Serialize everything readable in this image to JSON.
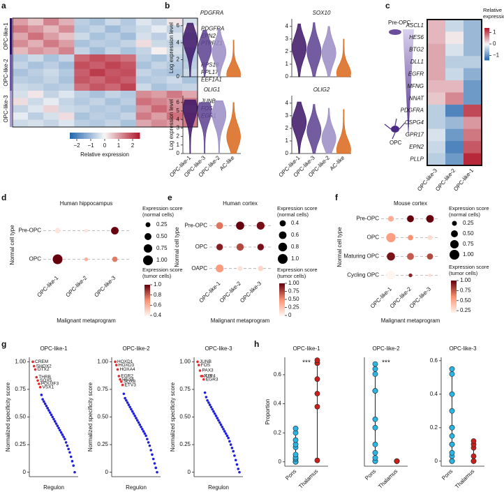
{
  "chart_data": [
    {
      "type": "heatmap",
      "panel_label": "a",
      "row_groups": [
        "OPC-like-1",
        "OPC-like-2",
        "OPC-like-3"
      ],
      "row_group_colors": [
        "#2d1160",
        "#6a55a0",
        "#a99bd0"
      ],
      "row_labels": [
        null,
        "PDGFRA",
        "EPN2",
        "PTPRZ1",
        null,
        null,
        "RPS18",
        "RPL17",
        "EEF1A1",
        null,
        null,
        "JUNB",
        "FOS",
        "EGR1",
        null
      ],
      "values": [
        [
          1.0,
          0.6,
          1.3,
          0.8,
          -0.7,
          -0.9,
          -0.5,
          -0.8,
          -0.3,
          -0.6,
          0.2,
          -0.4
        ],
        [
          1.4,
          1.1,
          0.7,
          1.2,
          -0.8,
          -0.6,
          -1.0,
          -0.7,
          -0.5,
          -0.2,
          -0.6,
          0.1
        ],
        [
          0.9,
          1.5,
          1.0,
          0.6,
          -0.5,
          -0.9,
          -0.7,
          -1.0,
          -0.4,
          -0.7,
          -0.3,
          -0.5
        ],
        [
          1.2,
          0.8,
          1.4,
          1.0,
          -0.9,
          -0.7,
          -0.8,
          -0.6,
          0.3,
          -0.5,
          -0.6,
          -0.2
        ],
        [
          0.7,
          1.1,
          0.9,
          1.3,
          -0.6,
          -1.0,
          -0.6,
          -0.9,
          -0.6,
          0.1,
          -0.4,
          -0.7
        ],
        [
          -0.8,
          -0.5,
          -0.9,
          -0.6,
          1.6,
          1.9,
          1.7,
          1.5,
          -0.7,
          -0.9,
          -0.6,
          -0.8
        ],
        [
          -0.6,
          -0.9,
          -0.7,
          -1.0,
          1.9,
          1.7,
          2.0,
          1.8,
          -0.9,
          -0.6,
          -0.8,
          -0.7
        ],
        [
          -0.9,
          -0.7,
          -0.5,
          -0.8,
          1.7,
          2.1,
          1.8,
          1.9,
          -0.6,
          -0.8,
          -0.9,
          -0.5
        ],
        [
          -0.7,
          -0.8,
          -0.6,
          -0.9,
          1.8,
          1.6,
          1.9,
          1.7,
          -0.8,
          -0.7,
          -0.5,
          -0.9
        ],
        [
          -0.5,
          -0.6,
          -0.8,
          -0.7,
          1.5,
          1.8,
          1.6,
          2.0,
          -0.5,
          -0.9,
          -0.7,
          -0.6
        ],
        [
          -0.4,
          0.2,
          -0.6,
          -0.3,
          -0.7,
          -0.9,
          -0.6,
          -0.8,
          1.2,
          1.0,
          1.4,
          0.9
        ],
        [
          0.3,
          -0.5,
          -0.2,
          -0.6,
          -0.8,
          -0.6,
          -0.9,
          -0.7,
          1.5,
          1.3,
          1.1,
          1.4
        ],
        [
          -0.6,
          -0.3,
          0.4,
          -0.5,
          -0.6,
          -0.8,
          -0.7,
          -0.9,
          1.1,
          1.6,
          1.2,
          1.0
        ],
        [
          -0.2,
          -0.7,
          -0.4,
          0.3,
          -0.9,
          -0.7,
          -0.8,
          -0.6,
          1.4,
          1.0,
          1.5,
          1.3
        ],
        [
          -0.5,
          -0.4,
          -0.6,
          -0.3,
          -0.7,
          -0.8,
          -0.6,
          -0.9,
          0.9,
          1.2,
          1.0,
          1.4
        ]
      ],
      "colormap": [
        "#2166ac",
        "#f7f7f7",
        "#b2182b"
      ],
      "clim": [
        -2.5,
        2.5
      ],
      "colorbar_label": "Relative expression",
      "colorbar_ticks": [
        {
          "value": -2,
          "label": "−2"
        },
        {
          "value": -1,
          "label": "−1"
        },
        0,
        1,
        2
      ]
    },
    {
      "type": "violin",
      "panel_label": "b",
      "ylabel": "Log expression level",
      "categories": [
        "OPC-like-1",
        "OPC-like-3",
        "OPC-like-2",
        "AC-like"
      ],
      "colors": [
        "#3b1466",
        "#5b3f8f",
        "#9a8cc4",
        "#d9661a"
      ],
      "plots": [
        {
          "title": "PDGFRA",
          "ylim": [
            0,
            6.8
          ],
          "yticks": [
            0,
            2,
            4,
            6
          ],
          "values": [
            4.3,
            3.3,
            2.9,
            0.3
          ],
          "maxima": [
            6.3,
            5.5,
            5.6,
            4.3
          ]
        },
        {
          "title": "SOX10",
          "ylim": [
            0,
            4.6
          ],
          "yticks": [
            0,
            1,
            2,
            3,
            4
          ],
          "values": [
            2.3,
            2.0,
            1.9,
            0.3
          ],
          "maxima": [
            4.2,
            4.3,
            4.0,
            3.0
          ]
        },
        {
          "title": "OLIG1",
          "ylim": [
            0,
            6.8
          ],
          "yticks": [
            0,
            1,
            2,
            3,
            4,
            5,
            6
          ],
          "values": [
            5.3,
            5.0,
            4.6,
            2.0
          ],
          "maxima": [
            6.3,
            6.0,
            6.2,
            6.0
          ]
        },
        {
          "title": "OLIG2",
          "ylim": [
            0,
            4.6
          ],
          "yticks": [
            0,
            1,
            2,
            3,
            4
          ],
          "values": [
            2.5,
            1.8,
            1.2,
            0.3
          ],
          "maxima": [
            4.1,
            3.9,
            3.6,
            3.5
          ]
        }
      ]
    },
    {
      "type": "heatmap",
      "panel_label": "c",
      "categories": [
        "OPC-like-3",
        "OPC-like-2",
        "OPC-like-1"
      ],
      "row_labels": [
        "ASCL1",
        "HES6",
        "BTG2",
        "DLL1",
        "EGFR",
        "MFNG",
        "NNAT",
        "PDGFRA",
        "CSPG4",
        "GPR17",
        "EPN2",
        "PLLP"
      ],
      "values": [
        [
          0.4,
          -0.3,
          -0.6
        ],
        [
          0.4,
          0.1,
          -0.6
        ],
        [
          0.5,
          -0.2,
          -0.6
        ],
        [
          0.5,
          -0.4,
          -0.4
        ],
        [
          0.5,
          -0.3,
          -0.7
        ],
        [
          0.4,
          0.4,
          -0.9
        ],
        [
          0.3,
          0.7,
          -0.9
        ],
        [
          -0.4,
          -1.1,
          1.1
        ],
        [
          -0.4,
          -0.6,
          0.6
        ],
        [
          -0.2,
          -0.9,
          0.8
        ],
        [
          -0.3,
          -1.1,
          1.0
        ],
        [
          -0.4,
          -0.9,
          1.3
        ]
      ],
      "colormap": [
        "#2166ac",
        "#f7f7f7",
        "#b2182b"
      ],
      "clim": [
        -1.4,
        1.4
      ],
      "colorbar_label": "Relative expression",
      "colorbar_ticks": [
        1,
        0,
        {
          "value": -1,
          "label": "−1"
        }
      ],
      "annotations": [
        "Pre-OPC",
        "OPC"
      ]
    },
    {
      "type": "dot",
      "panel_label": "d",
      "title": "Human hippocampus",
      "ylabel": "Normal cell type",
      "xlabel": "Malignant metaprogram",
      "categories": [
        "OPC-like-1",
        "OPC-like-2",
        "OPC-like-3"
      ],
      "y_categories": [
        "Pre-OPC",
        "OPC"
      ],
      "size_values": [
        [
          0.3,
          0.15,
          0.6
        ],
        [
          1.0,
          0.15,
          0.3
        ]
      ],
      "color_values": [
        [
          0.45,
          0.45,
          1.0
        ],
        [
          1.0,
          0.6,
          0.75
        ]
      ],
      "size_lim": [
        0,
        1
      ],
      "size_legend_title": "Expression score (normal cells)",
      "size_ticks": [
        0.25,
        {
          "value": 0.5,
          "label": "0.50"
        },
        0.75,
        {
          "value": 1,
          "label": "1.00"
        }
      ],
      "colormap": [
        "#fff5f0",
        "#fc9272",
        "#67000d"
      ],
      "clim": [
        0.4,
        1.0
      ],
      "color_legend_title": "Expression score (tumor cells)",
      "color_ticks": [
        {
          "value": 1,
          "label": "1.0"
        },
        0.8,
        0.6,
        0.4
      ]
    },
    {
      "type": "dot",
      "panel_label": "e",
      "title": "Human cortex",
      "ylabel": "Normal cell type",
      "xlabel": "Malignant metaprogram",
      "categories": [
        "OPC-like-1",
        "OPC-like-2",
        "OPC-like-3"
      ],
      "y_categories": [
        "Pre-OPC",
        "OPC",
        "OAPC"
      ],
      "size_values": [
        [
          0.5,
          0.7,
          0.65
        ],
        [
          0.45,
          0.55,
          0.45
        ],
        [
          0.65,
          0.25,
          0.3
        ]
      ],
      "color_values": [
        [
          0.6,
          1.0,
          0.95
        ],
        [
          0.9,
          0.75,
          0.95
        ],
        [
          0.45,
          0.1,
          0.15
        ]
      ],
      "size_lim": [
        0,
        1
      ],
      "size_legend_title": "Expression score (normal cells)",
      "size_ticks": [
        0.4,
        0.6,
        0.8,
        {
          "value": 1,
          "label": "1.0"
        }
      ],
      "colormap": [
        "#fff5f0",
        "#fc9272",
        "#67000d"
      ],
      "clim": [
        0,
        1
      ],
      "color_legend_title": "Expression score (tumor cells)",
      "color_ticks": [
        {
          "value": 1,
          "label": "1.00"
        },
        0.75,
        {
          "value": 0.5,
          "label": "0.50"
        },
        0.25,
        0
      ]
    },
    {
      "type": "dot",
      "panel_label": "f",
      "title": "Mouse cortex",
      "ylabel": "Normal cell type",
      "xlabel": "Malignant metaprogram",
      "categories": [
        "OPC-like-1",
        "OPC-like-2",
        "OPC-like-3"
      ],
      "y_categories": [
        "Pre-OPC",
        "OPC",
        "Maturing OPC",
        "Cycling OPC"
      ],
      "size_values": [
        [
          0.35,
          0.5,
          0.6
        ],
        [
          0.9,
          0.3,
          0.25
        ],
        [
          0.7,
          0.5,
          0.4
        ],
        [
          0.8,
          0.15,
          0.1
        ]
      ],
      "color_values": [
        [
          0.5,
          1.0,
          1.0
        ],
        [
          0.55,
          0.6,
          0.3
        ],
        [
          0.95,
          0.75,
          0.8
        ],
        [
          0.2,
          0.9,
          0.3
        ]
      ],
      "size_lim": [
        0,
        1
      ],
      "size_legend_title": "Expression score (normal cells)",
      "size_ticks": [
        0.25,
        {
          "value": 0.5,
          "label": "0.50"
        },
        0.75,
        {
          "value": 1,
          "label": "1.00"
        }
      ],
      "colormap": [
        "#fff5f0",
        "#fc9272",
        "#67000d"
      ],
      "clim": [
        0.2,
        1.0
      ],
      "color_legend_title": "Expression score (tumor cells)",
      "color_ticks": [
        {
          "value": 1,
          "label": "1.00"
        },
        0.75,
        {
          "value": 0.5,
          "label": "0.50"
        },
        0.25
      ]
    },
    {
      "type": "rank",
      "panel_label": "g",
      "ylabel": "Normalized specificity score",
      "xlabel": "Regulon",
      "ylim": [
        -0.04,
        1.04
      ],
      "yticks": [
        0,
        0.25,
        {
          "value": 0.5,
          "label": "0.50"
        },
        0.75,
        {
          "value": 1,
          "label": "1.00"
        }
      ],
      "color": "#1f1fd8",
      "highlight_color": "#e8282b",
      "panels": [
        {
          "title": "OPC-like-1",
          "labels": [
            "CREM",
            "SHOX2",
            "OTX2",
            "THRB",
            "SOX5",
            "POU3F3",
            "VSX1"
          ],
          "values": [
            1.0,
            0.96,
            0.93,
            0.86,
            0.83,
            0.8,
            0.77,
            0.7,
            0.66,
            0.64,
            0.62,
            0.6,
            0.58,
            0.56,
            0.54,
            0.52,
            0.5,
            0.48,
            0.46,
            0.44,
            0.42,
            0.4,
            0.38,
            0.36,
            0.34,
            0.32,
            0.3,
            0.27,
            0.24,
            0.21,
            0.18,
            0.14,
            0.1,
            0.06,
            0.0
          ]
        },
        {
          "title": "OPC-like-2",
          "labels": [
            "HOXD1",
            "HOXD3",
            "HOXA4",
            "EGR2",
            "HES6",
            "SOX8",
            "ETV3"
          ],
          "values": [
            1.0,
            0.97,
            0.93,
            0.87,
            0.84,
            0.82,
            0.79,
            0.71,
            0.67,
            0.65,
            0.63,
            0.61,
            0.59,
            0.57,
            0.55,
            0.53,
            0.51,
            0.49,
            0.47,
            0.45,
            0.43,
            0.41,
            0.39,
            0.37,
            0.35,
            0.33,
            0.3,
            0.27,
            0.24,
            0.2,
            0.16,
            0.12,
            0.08,
            0.04,
            0.0
          ]
        },
        {
          "title": "OPC-like-3",
          "labels": [
            "JUNB",
            "FOS",
            "PAX3",
            "JUN",
            "KLF4",
            "EGR3"
          ],
          "values": [
            1.0,
            0.97,
            0.92,
            0.87,
            0.87,
            0.84,
            0.72,
            0.68,
            0.65,
            0.63,
            0.61,
            0.59,
            0.57,
            0.55,
            0.53,
            0.51,
            0.49,
            0.47,
            0.45,
            0.43,
            0.41,
            0.39,
            0.37,
            0.35,
            0.33,
            0.31,
            0.28,
            0.25,
            0.22,
            0.19,
            0.15,
            0.11,
            0.07,
            0.03,
            0.0
          ]
        }
      ]
    },
    {
      "type": "strip",
      "panel_label": "h",
      "ylabel": "Proportion",
      "categories": [
        "Pons",
        "Thalamus"
      ],
      "colors": [
        "#2bb5e6",
        "#c7201d"
      ],
      "panels": [
        {
          "title": "OPC-like-1",
          "annotation": "***",
          "ylim": [
            -0.03,
            0.72
          ],
          "yticks": [
            0,
            0.2,
            0.4,
            0.6
          ],
          "series": [
            [
              0,
              0,
              0,
              0,
              0.02,
              0.03,
              0.05,
              0.1,
              0.12,
              0.15,
              0.2,
              0.23
            ],
            [
              0.01,
              0.38,
              0.47,
              0.57,
              0.68,
              0.7
            ]
          ]
        },
        {
          "title": "OPC-like-2",
          "annotation": "***",
          "ylim": [
            -0.03,
            0.62
          ],
          "series": [
            [
              0,
              0,
              0.02,
              0.05,
              0.1,
              0.2,
              0.25,
              0.42,
              0.42,
              0.52,
              0.55,
              0.58
            ],
            [
              0,
              0,
              0,
              0,
              0,
              0
            ]
          ]
        },
        {
          "title": "OPC-like-3",
          "ylim": [
            -0.03,
            0.62
          ],
          "yticks": [
            0,
            0.2,
            0.4,
            0.6
          ],
          "series": [
            [
              0,
              0,
              0.03,
              0.05,
              0.1,
              0.1,
              0.15,
              0.2,
              0.2,
              0.3,
              0.4,
              0.52,
              0.55
            ],
            [
              0,
              0,
              0.03,
              0.08,
              0.1,
              0.12
            ]
          ]
        }
      ]
    }
  ]
}
